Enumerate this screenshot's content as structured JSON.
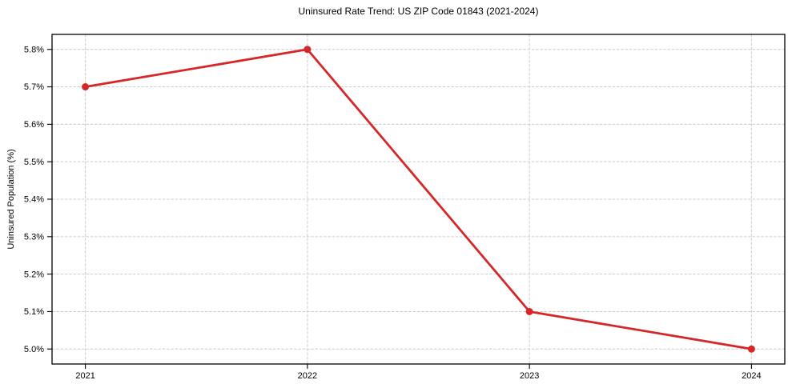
{
  "page": {
    "background_color": "#ffffff"
  },
  "chart_data": {
    "type": "line",
    "title": "Uninsured Rate Trend: US ZIP Code 01843 (2021-2024)",
    "xlabel": "",
    "ylabel": "Uninsured Population (%)",
    "x": [
      2021,
      2022,
      2023,
      2024
    ],
    "x_tick_labels": [
      "2021",
      "2022",
      "2023",
      "2024"
    ],
    "values": [
      5.7,
      5.8,
      5.1,
      5.0
    ],
    "y_ticks": [
      5.0,
      5.1,
      5.2,
      5.3,
      5.4,
      5.5,
      5.6,
      5.7,
      5.8
    ],
    "y_tick_labels": [
      "5.0%",
      "5.1%",
      "5.2%",
      "5.3%",
      "5.4%",
      "5.5%",
      "5.6%",
      "5.7%",
      "5.8%"
    ],
    "xlim": [
      2020.85,
      2024.15
    ],
    "ylim": [
      4.96,
      5.84
    ],
    "grid": true,
    "grid_style": "dashed",
    "legend_position": "none",
    "line_color": "#d62728",
    "marker": "circle",
    "grid_color": "#cccccc",
    "axis_color": "#000000"
  }
}
